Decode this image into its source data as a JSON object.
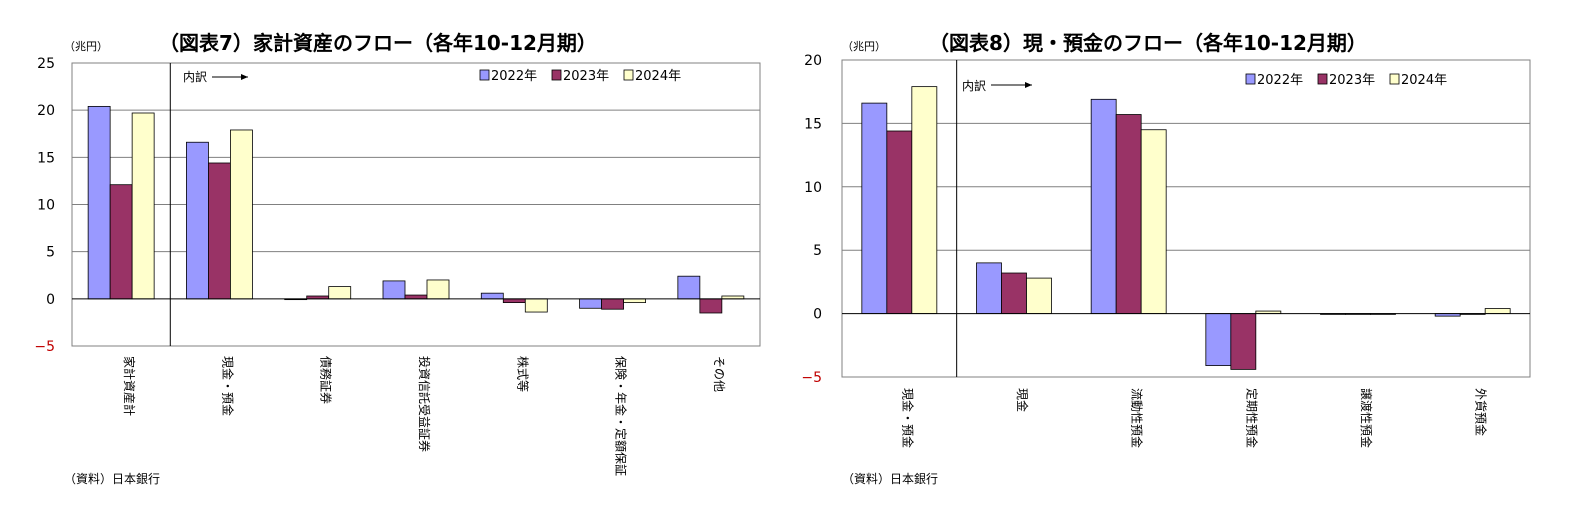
{
  "colors": {
    "s2022": "#9999ff",
    "s2023": "#993366",
    "s2024": "#ffffcc",
    "grid": "#808080",
    "axis": "#000000",
    "negtick": "#c00000"
  },
  "chart_data": [
    {
      "type": "bar",
      "title": "（図表7）家計資産のフロー（各年10-12月期）",
      "unit": "（兆円）",
      "note": "内訳",
      "source": "（資料）日本銀行",
      "categories": [
        "家計資産計",
        "現金・預金",
        "債務証券",
        "投資信託受益証券",
        "株式等",
        "保険・年金・定額保証",
        "その他"
      ],
      "ylim": [
        -5,
        25
      ],
      "yticks": [
        "25",
        "20",
        "15",
        "10",
        "5",
        "0",
        "−5"
      ],
      "series": [
        {
          "name": "2022年",
          "values": [
            20.4,
            16.6,
            0.0,
            1.9,
            0.6,
            -1.0,
            2.4
          ]
        },
        {
          "name": "2023年",
          "values": [
            12.1,
            14.4,
            0.3,
            0.4,
            -0.4,
            -1.1,
            -1.5
          ]
        },
        {
          "name": "2024年",
          "values": [
            19.7,
            17.9,
            1.3,
            2.0,
            -1.4,
            -0.4,
            0.3
          ]
        }
      ]
    },
    {
      "type": "bar",
      "title": "（図表8）現・預金のフロー（各年10-12月期）",
      "unit": "（兆円）",
      "note": "内訳",
      "source": "（資料）日本銀行",
      "categories": [
        "現金・預金",
        "現金",
        "流動性預金",
        "定期性預金",
        "譲渡性預金",
        "外貨預金"
      ],
      "ylim": [
        -5,
        20
      ],
      "yticks": [
        "20",
        "15",
        "10",
        "5",
        "0",
        "−5"
      ],
      "series": [
        {
          "name": "2022年",
          "values": [
            16.6,
            4.0,
            16.9,
            -4.1,
            -0.05,
            -0.2
          ]
        },
        {
          "name": "2023年",
          "values": [
            14.4,
            3.2,
            15.7,
            -4.4,
            -0.05,
            -0.05
          ]
        },
        {
          "name": "2024年",
          "values": [
            17.9,
            2.8,
            14.5,
            0.2,
            0.0,
            0.4
          ]
        }
      ]
    }
  ]
}
